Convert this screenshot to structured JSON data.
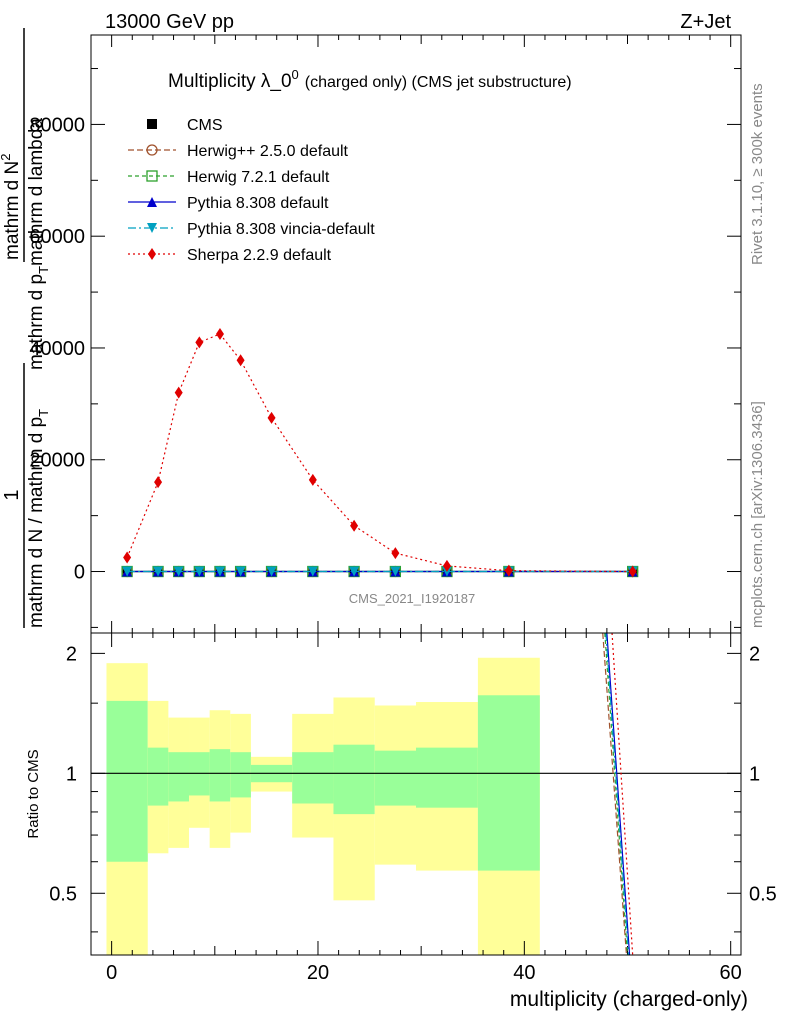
{
  "header": {
    "left": "13000 GeV pp",
    "right": "Z+Jet"
  },
  "side_labels": {
    "rivet": "Rivet 3.1.10, ≥ 300k events",
    "mcplots": "mcplots.cern.ch [arXiv:1306.3436]"
  },
  "colors": {
    "cms": "#000000",
    "herwig25": "#a0522d",
    "herwig72": "#2ca02c",
    "pythia": "#0000cc",
    "vincia": "#00a0c0",
    "sherpa": "#e00000",
    "band_inner": "#99ff99",
    "band_outer": "#ffff99"
  },
  "chart_data": [
    {
      "type": "line",
      "title": "Multiplicity λ_0",
      "title_sup": "0",
      "title_suffix": "(charged only) (CMS jet substructure)",
      "ylabel_parts": [
        "1",
        "mathrm d N / mathrm d p",
        "T",
        "mathrm d N",
        "2",
        "mathrm d p",
        "T",
        "mathrm d lambda"
      ],
      "ylabel_full": "1 / (mathrm d N / mathrm d p_T) · mathrm d^2N / (mathrm d p_T mathrm d lambda)",
      "watermark": "CMS_2021_I1920187",
      "xlim": [
        -2,
        61
      ],
      "ylim": [
        -11000,
        96000
      ],
      "y_ticks": [
        0,
        20000,
        40000,
        60000,
        80000
      ],
      "y_tick_labels": [
        "0",
        "20000",
        "40000",
        "60000",
        "80000"
      ],
      "legend_position": "top-left",
      "series": [
        {
          "key": "cms",
          "name": "CMS",
          "marker": "square",
          "dash": "none",
          "x": [
            1.5,
            4.5,
            6.5,
            8.5,
            10.5,
            12.5,
            15.5,
            19.5,
            23.5,
            27.5,
            32.5,
            38.5,
            50.5
          ],
          "values": [
            0,
            0,
            0,
            0,
            0,
            0,
            0,
            0,
            0,
            0,
            0,
            0,
            0
          ]
        },
        {
          "key": "herwig25",
          "name": "Herwig++ 2.5.0 default",
          "marker": "circle",
          "dash": "6,3",
          "x": [
            1.5,
            4.5,
            6.5,
            8.5,
            10.5,
            12.5,
            15.5,
            19.5,
            23.5,
            27.5,
            32.5,
            38.5,
            50.5
          ],
          "values": [
            0,
            0,
            0,
            0,
            0,
            0,
            0,
            0,
            0,
            0,
            0,
            0,
            0
          ]
        },
        {
          "key": "herwig72",
          "name": "Herwig 7.2.1 default",
          "marker": "square-open",
          "dash": "4,3",
          "x": [
            1.5,
            4.5,
            6.5,
            8.5,
            10.5,
            12.5,
            15.5,
            19.5,
            23.5,
            27.5,
            32.5,
            38.5,
            50.5
          ],
          "values": [
            0,
            0,
            0,
            0,
            0,
            0,
            0,
            0,
            0,
            0,
            0,
            0,
            0
          ]
        },
        {
          "key": "pythia",
          "name": "Pythia 8.308 default",
          "marker": "triangle-up",
          "dash": "none",
          "x": [
            1.5,
            4.5,
            6.5,
            8.5,
            10.5,
            12.5,
            15.5,
            19.5,
            23.5,
            27.5,
            32.5,
            38.5,
            50.5
          ],
          "values": [
            0,
            0,
            0,
            0,
            0,
            0,
            0,
            0,
            0,
            0,
            0,
            0,
            0
          ]
        },
        {
          "key": "vincia",
          "name": "Pythia 8.308 vincia-default",
          "marker": "triangle-down",
          "dash": "8,3,2,3",
          "x": [
            1.5,
            4.5,
            6.5,
            8.5,
            10.5,
            12.5,
            15.5,
            19.5,
            23.5,
            27.5,
            32.5,
            38.5,
            50.5
          ],
          "values": [
            0,
            0,
            0,
            0,
            0,
            0,
            0,
            0,
            0,
            0,
            0,
            0,
            0
          ]
        },
        {
          "key": "sherpa",
          "name": "Sherpa 2.2.9 default",
          "marker": "diamond",
          "dash": "2,3",
          "x": [
            1.5,
            4.5,
            6.5,
            8.5,
            10.5,
            12.5,
            15.5,
            19.5,
            23.5,
            27.5,
            32.5,
            38.5,
            50.5
          ],
          "values": [
            2500,
            16000,
            32000,
            41000,
            42500,
            37800,
            27500,
            16400,
            8200,
            3300,
            1000,
            150,
            0
          ]
        }
      ]
    },
    {
      "type": "area",
      "ylabel": "Ratio to CMS",
      "xlabel": "multiplicity (charged-only)",
      "xlim": [
        -2,
        61
      ],
      "ylim": [
        0.35,
        2.25
      ],
      "x_ticks": [
        0,
        20,
        40,
        60
      ],
      "x_tick_labels": [
        "0",
        "20",
        "40",
        "60"
      ],
      "y_ticks": [
        0.5,
        1,
        2
      ],
      "y_tick_labels": [
        "0.5",
        "1",
        "2"
      ],
      "bins": [
        {
          "lo": -0.5,
          "hi": 3.5,
          "inner": [
            0.6,
            1.52
          ],
          "outer": [
            0.3,
            1.89
          ]
        },
        {
          "lo": 3.5,
          "hi": 5.5,
          "inner": [
            0.83,
            1.16
          ],
          "outer": [
            0.63,
            1.52
          ]
        },
        {
          "lo": 5.5,
          "hi": 7.5,
          "inner": [
            0.85,
            1.13
          ],
          "outer": [
            0.65,
            1.38
          ]
        },
        {
          "lo": 7.5,
          "hi": 9.5,
          "inner": [
            0.88,
            1.13
          ],
          "outer": [
            0.73,
            1.38
          ]
        },
        {
          "lo": 9.5,
          "hi": 11.5,
          "inner": [
            0.85,
            1.15
          ],
          "outer": [
            0.65,
            1.44
          ]
        },
        {
          "lo": 11.5,
          "hi": 13.5,
          "inner": [
            0.87,
            1.13
          ],
          "outer": [
            0.71,
            1.41
          ]
        },
        {
          "lo": 13.5,
          "hi": 17.5,
          "inner": [
            0.95,
            1.05
          ],
          "outer": [
            0.9,
            1.1
          ]
        },
        {
          "lo": 17.5,
          "hi": 21.5,
          "inner": [
            0.84,
            1.13
          ],
          "outer": [
            0.69,
            1.41
          ]
        },
        {
          "lo": 21.5,
          "hi": 25.5,
          "inner": [
            0.79,
            1.18
          ],
          "outer": [
            0.48,
            1.55
          ]
        },
        {
          "lo": 25.5,
          "hi": 29.5,
          "inner": [
            0.83,
            1.14
          ],
          "outer": [
            0.59,
            1.48
          ]
        },
        {
          "lo": 29.5,
          "hi": 35.5,
          "inner": [
            0.82,
            1.16
          ],
          "outer": [
            0.57,
            1.51
          ]
        },
        {
          "lo": 35.5,
          "hi": 41.5,
          "inner": [
            0.57,
            1.57
          ],
          "outer": [
            0.3,
            1.95
          ]
        }
      ],
      "reference": 1,
      "ratio_series": [
        {
          "key": "herwig25",
          "x": [
            47.6,
            49.9
          ],
          "values": [
            2.3,
            0.3
          ]
        },
        {
          "key": "herwig72",
          "x": [
            47.8,
            50.0
          ],
          "values": [
            2.3,
            0.3
          ]
        },
        {
          "key": "pythia",
          "x": [
            48.0,
            50.2
          ],
          "values": [
            2.3,
            0.3
          ]
        },
        {
          "key": "vincia",
          "x": [
            47.9,
            50.1
          ],
          "values": [
            2.3,
            0.3
          ]
        },
        {
          "key": "sherpa",
          "x": [
            48.5,
            50.5
          ],
          "values": [
            2.3,
            0.3
          ]
        }
      ]
    }
  ]
}
